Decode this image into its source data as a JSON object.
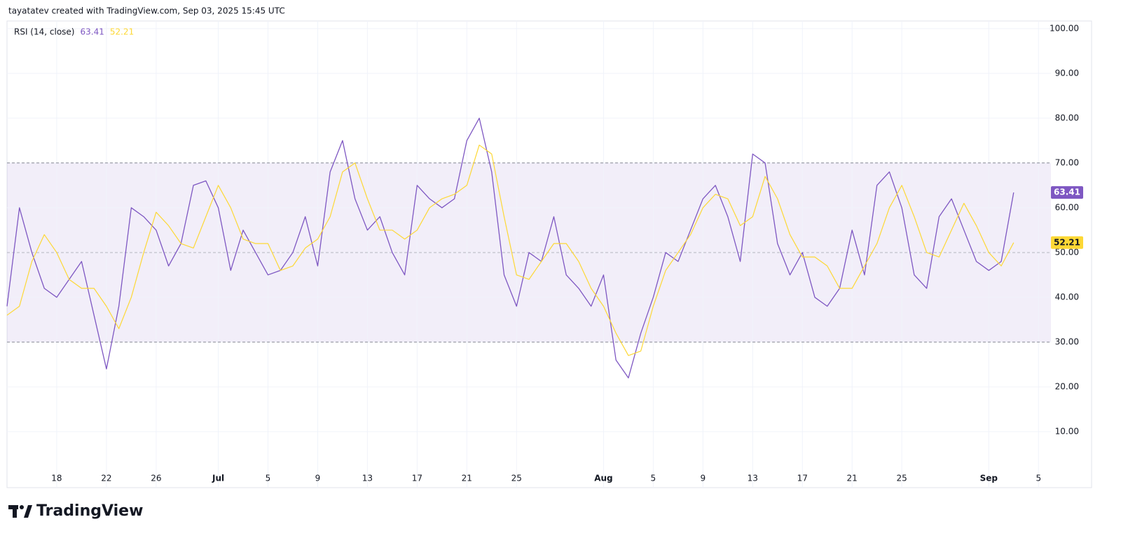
{
  "header": "tayatatev created with TradingView.com, Sep 03, 2025 15:45 UTC",
  "logo": "TradingView",
  "chart_data": {
    "type": "line",
    "title": "RSI (14, close)",
    "x": [
      "2025-06-14",
      "2025-06-15",
      "2025-06-16",
      "2025-06-17",
      "2025-06-18",
      "2025-06-19",
      "2025-06-20",
      "2025-06-21",
      "2025-06-22",
      "2025-06-23",
      "2025-06-24",
      "2025-06-25",
      "2025-06-26",
      "2025-06-27",
      "2025-06-28",
      "2025-06-29",
      "2025-06-30",
      "2025-07-01",
      "2025-07-02",
      "2025-07-03",
      "2025-07-04",
      "2025-07-05",
      "2025-07-06",
      "2025-07-07",
      "2025-07-08",
      "2025-07-09",
      "2025-07-10",
      "2025-07-11",
      "2025-07-12",
      "2025-07-13",
      "2025-07-14",
      "2025-07-15",
      "2025-07-16",
      "2025-07-17",
      "2025-07-18",
      "2025-07-19",
      "2025-07-20",
      "2025-07-21",
      "2025-07-22",
      "2025-07-23",
      "2025-07-24",
      "2025-07-25",
      "2025-07-26",
      "2025-07-27",
      "2025-07-28",
      "2025-07-29",
      "2025-07-30",
      "2025-07-31",
      "2025-08-01",
      "2025-08-02",
      "2025-08-03",
      "2025-08-04",
      "2025-08-05",
      "2025-08-06",
      "2025-08-07",
      "2025-08-08",
      "2025-08-09",
      "2025-08-10",
      "2025-08-11",
      "2025-08-12",
      "2025-08-13",
      "2025-08-14",
      "2025-08-15",
      "2025-08-16",
      "2025-08-17",
      "2025-08-18",
      "2025-08-19",
      "2025-08-20",
      "2025-08-21",
      "2025-08-22",
      "2025-08-23",
      "2025-08-24",
      "2025-08-25",
      "2025-08-26",
      "2025-08-27",
      "2025-08-28",
      "2025-08-29",
      "2025-08-30",
      "2025-08-31",
      "2025-09-01",
      "2025-09-02",
      "2025-09-03"
    ],
    "series": [
      {
        "color": "#7e57c2",
        "values": [
          38,
          60,
          50,
          42,
          40,
          44,
          48,
          36,
          24,
          38,
          60,
          58,
          55,
          47,
          52,
          65,
          66,
          60,
          46,
          55,
          50,
          45,
          46,
          50,
          58,
          47,
          68,
          75,
          62,
          55,
          58,
          50,
          45,
          65,
          62,
          60,
          62,
          75,
          80,
          68,
          45,
          38,
          50,
          48,
          58,
          45,
          42,
          38,
          45,
          26,
          22,
          32,
          40,
          50,
          48,
          55,
          62,
          65,
          58,
          48,
          72,
          70,
          52,
          45,
          50,
          40,
          38,
          42,
          55,
          45,
          65,
          68,
          60,
          45,
          42,
          58,
          62,
          55,
          48,
          46,
          48,
          63.41
        ]
      },
      {
        "color": "#fdd835",
        "values": [
          36,
          38,
          48,
          54,
          50,
          44,
          42,
          42,
          38,
          33,
          40,
          50,
          59,
          56,
          52,
          51,
          58,
          65,
          60,
          53,
          52,
          52,
          46,
          47,
          51,
          53,
          58,
          68,
          70,
          62,
          55,
          55,
          53,
          55,
          60,
          62,
          63,
          65,
          74,
          72,
          58,
          45,
          44,
          48,
          52,
          52,
          48,
          42,
          38,
          32,
          27,
          28,
          38,
          46,
          50,
          54,
          60,
          63,
          62,
          56,
          58,
          67,
          62,
          54,
          49,
          49,
          47,
          42,
          42,
          47,
          52,
          60,
          65,
          58,
          50,
          49,
          55,
          61,
          56,
          50,
          47,
          52.21
        ]
      }
    ],
    "bands": {
      "upper": 70,
      "middle": 50,
      "lower": 30
    },
    "xlim": [
      "2025-06-14",
      "2025-09-06"
    ],
    "xticks": [
      {
        "value": "2025-06-18",
        "label": "18"
      },
      {
        "value": "2025-06-22",
        "label": "22"
      },
      {
        "value": "2025-06-26",
        "label": "26"
      },
      {
        "value": "2025-07-01",
        "label": "Jul"
      },
      {
        "value": "2025-07-05",
        "label": "5"
      },
      {
        "value": "2025-07-09",
        "label": "9"
      },
      {
        "value": "2025-07-13",
        "label": "13"
      },
      {
        "value": "2025-07-17",
        "label": "17"
      },
      {
        "value": "2025-07-21",
        "label": "21"
      },
      {
        "value": "2025-07-25",
        "label": "25"
      },
      {
        "value": "2025-08-01",
        "label": "Aug"
      },
      {
        "value": "2025-08-05",
        "label": "5"
      },
      {
        "value": "2025-08-09",
        "label": "9"
      },
      {
        "value": "2025-08-13",
        "label": "13"
      },
      {
        "value": "2025-08-17",
        "label": "17"
      },
      {
        "value": "2025-08-21",
        "label": "21"
      },
      {
        "value": "2025-08-25",
        "label": "25"
      },
      {
        "value": "2025-09-01",
        "label": "Sep"
      },
      {
        "value": "2025-09-05",
        "label": "5"
      }
    ],
    "ylim": [
      -2.5,
      101.7
    ],
    "yticks": [
      {
        "value": 10,
        "label": "10.00"
      },
      {
        "value": 20,
        "label": "20.00"
      },
      {
        "value": 30,
        "label": "30.00"
      },
      {
        "value": 40,
        "label": "40.00"
      },
      {
        "value": 50,
        "label": "50.00"
      },
      {
        "value": 60,
        "label": "60.00"
      },
      {
        "value": 70,
        "label": "70.00"
      },
      {
        "value": 80,
        "label": "80.00"
      },
      {
        "value": 90,
        "label": "90.00"
      },
      {
        "value": 100,
        "label": "100.00"
      }
    ],
    "grid": true
  }
}
